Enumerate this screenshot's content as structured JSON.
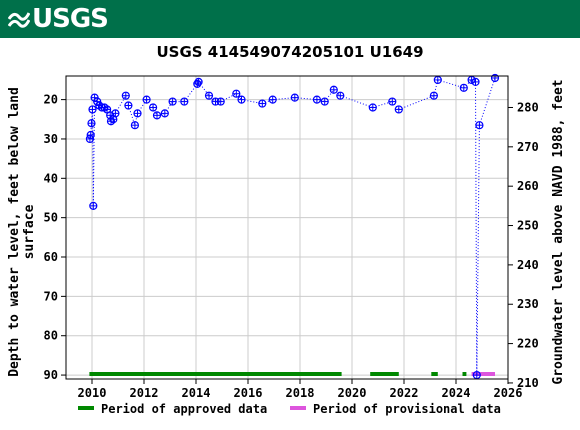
{
  "header": {
    "logo_text": "USGS",
    "logo_icon": "usgs-wave-icon",
    "banner_color": "#00704a"
  },
  "chart_data": {
    "type": "scatter",
    "title": "USGS 414549074205101 U1649",
    "ylabel_left": "Depth to water level, feet below land surface",
    "ylabel_left_lines": [
      "Depth to water level, feet below land",
      "surface"
    ],
    "ylabel_right": "Groundwater level above NAVD 1988, feet",
    "y_left_inverted": true,
    "x_range": [
      2009.0,
      2026.0
    ],
    "y_left_range": [
      14.0,
      91.0
    ],
    "y_right_range": [
      211.0,
      288.0
    ],
    "x_ticks": [
      2010,
      2012,
      2014,
      2016,
      2018,
      2020,
      2022,
      2024,
      2026
    ],
    "y_left_ticks": [
      20,
      30,
      40,
      50,
      60,
      70,
      80,
      90
    ],
    "y_right_ticks": [
      210,
      220,
      230,
      240,
      250,
      260,
      270,
      280
    ],
    "grid": true,
    "series": [
      {
        "name": "approved",
        "marker": "circle-open",
        "color": "#0000ff",
        "connected": "dotted",
        "points": [
          [
            2009.92,
            30.0
          ],
          [
            2009.95,
            29.0
          ],
          [
            2009.98,
            26.0
          ],
          [
            2010.02,
            22.5
          ],
          [
            2010.05,
            47.0
          ],
          [
            2010.1,
            19.5
          ],
          [
            2010.2,
            20.5
          ],
          [
            2010.28,
            21.5
          ],
          [
            2010.38,
            22.0
          ],
          [
            2010.48,
            22.0
          ],
          [
            2010.58,
            22.5
          ],
          [
            2010.7,
            24.0
          ],
          [
            2010.73,
            25.5
          ],
          [
            2010.82,
            25.0
          ],
          [
            2010.9,
            23.5
          ],
          [
            2011.3,
            19.0
          ],
          [
            2011.4,
            21.5
          ],
          [
            2011.65,
            26.5
          ],
          [
            2011.75,
            23.5
          ],
          [
            2012.1,
            20.0
          ],
          [
            2012.35,
            22.0
          ],
          [
            2012.5,
            24.0
          ],
          [
            2012.8,
            23.5
          ],
          [
            2013.1,
            20.5
          ],
          [
            2013.55,
            20.5
          ],
          [
            2014.05,
            16.0
          ],
          [
            2014.1,
            15.5
          ],
          [
            2014.5,
            19.0
          ],
          [
            2014.75,
            20.5
          ],
          [
            2014.95,
            20.5
          ],
          [
            2015.55,
            18.5
          ],
          [
            2015.75,
            20.0
          ],
          [
            2016.55,
            21.0
          ],
          [
            2016.95,
            20.0
          ],
          [
            2017.8,
            19.5
          ],
          [
            2018.65,
            20.0
          ],
          [
            2018.95,
            20.5
          ],
          [
            2019.3,
            17.5
          ],
          [
            2019.55,
            19.0
          ],
          [
            2020.8,
            22.0
          ],
          [
            2021.55,
            20.5
          ],
          [
            2021.8,
            22.5
          ],
          [
            2023.15,
            19.0
          ],
          [
            2023.3,
            15.0
          ],
          [
            2024.3,
            17.0
          ],
          [
            2024.6,
            15.0
          ],
          [
            2024.75,
            15.5
          ],
          [
            2024.9,
            26.5
          ],
          [
            2025.5,
            14.5
          ]
        ]
      },
      {
        "name": "provisional",
        "marker": "circle-open",
        "color": "#0000ff",
        "connected": "dotted",
        "points": [
          [
            2024.8,
            90.0
          ]
        ]
      }
    ],
    "periods": [
      {
        "type": "approved",
        "color": "#008800",
        "start": 2009.9,
        "end": 2019.6
      },
      {
        "type": "approved",
        "color": "#008800",
        "start": 2020.7,
        "end": 2021.8
      },
      {
        "type": "approved",
        "color": "#008800",
        "start": 2023.05,
        "end": 2023.3
      },
      {
        "type": "approved",
        "color": "#008800",
        "start": 2024.25,
        "end": 2024.4
      },
      {
        "type": "provisional",
        "color": "#dd55dd",
        "start": 2024.6,
        "end": 2025.5
      }
    ],
    "legend": {
      "placement": "bottom",
      "items": [
        {
          "label": "Period of approved data",
          "color": "#008800"
        },
        {
          "label": "Period of provisional data",
          "color": "#dd55dd"
        }
      ]
    }
  }
}
